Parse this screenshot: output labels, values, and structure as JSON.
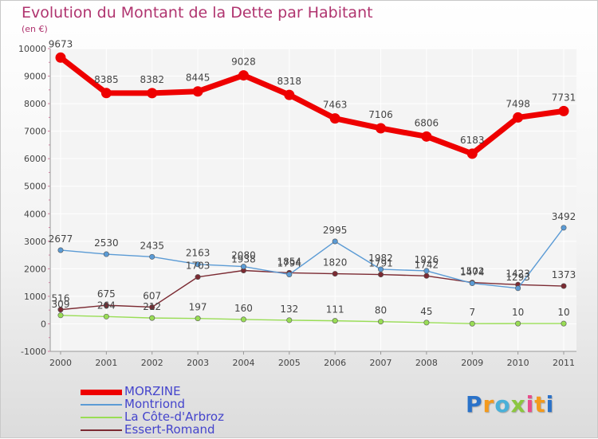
{
  "chart_data": {
    "type": "line",
    "title": "Evolution du Montant de la Dette par Habitant",
    "subtitle": "(en €)",
    "x": [
      "2000",
      "2001",
      "2002",
      "2003",
      "2004",
      "2005",
      "2006",
      "2007",
      "2008",
      "2009",
      "2010",
      "2011"
    ],
    "ylim": [
      -1000,
      10000
    ],
    "yticks": [
      "-1000",
      "0",
      "1000",
      "2000",
      "3000",
      "4000",
      "5000",
      "6000",
      "7000",
      "8000",
      "9000",
      "10000"
    ],
    "legend_position": "bottom-left",
    "series": [
      {
        "name": "MORZINE",
        "color": "#ee0000",
        "values": [
          9673,
          8385,
          8382,
          8445,
          9028,
          8318,
          7463,
          7106,
          6806,
          6183,
          7498,
          7731
        ]
      },
      {
        "name": "Montriond",
        "color": "#5b9bd5",
        "values": [
          2677,
          2530,
          2435,
          2163,
          2080,
          1794,
          2995,
          1982,
          1926,
          1474,
          1293,
          3492
        ]
      },
      {
        "name": "La Côte-d'Arbroz",
        "color": "#99dd55",
        "values": [
          309,
          264,
          212,
          197,
          160,
          132,
          111,
          80,
          45,
          7,
          10,
          10
        ]
      },
      {
        "name": "Essert-Romand",
        "color": "#7b2a32",
        "values": [
          516,
          675,
          607,
          1703,
          1938,
          1854,
          1820,
          1791,
          1742,
          1502,
          1423,
          1373
        ]
      }
    ]
  },
  "brand": {
    "letters": [
      "P",
      "r",
      "o",
      "x",
      "i",
      "t",
      "i"
    ],
    "colors": [
      "#2a72c9",
      "#f39a1d",
      "#4ab0d8",
      "#8cc63f",
      "#e84c8b",
      "#f39a1d",
      "#2a72c9"
    ]
  }
}
